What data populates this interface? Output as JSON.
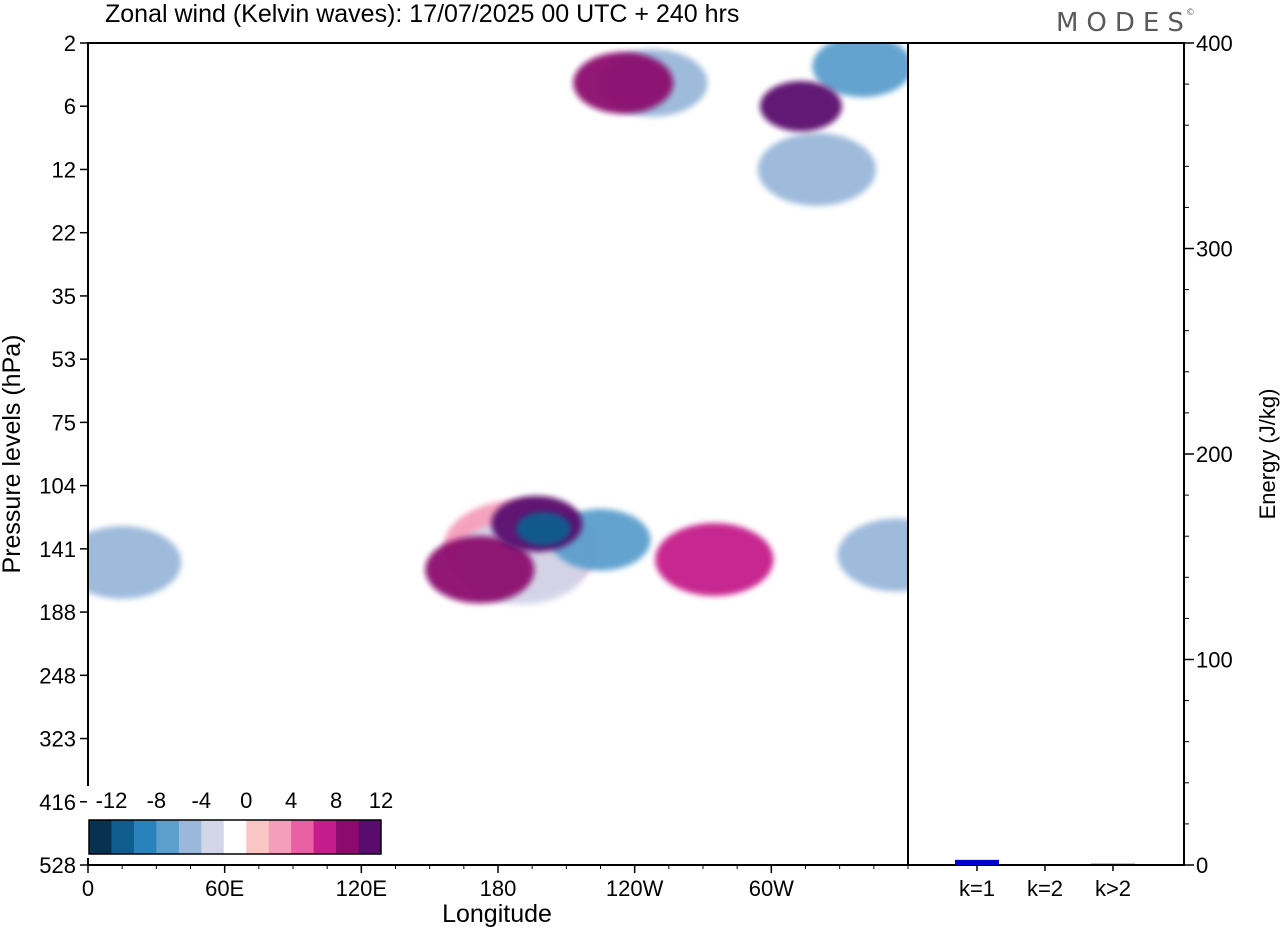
{
  "brand": "MODES",
  "chart_data": [
    {
      "type": "heatmap",
      "title": "Zonal wind (Kelvin waves):  17/07/2025  00 UTC  + 240 hrs",
      "xlabel": "Longitude",
      "ylabel": "Pressure levels (hPa)",
      "x_ticks": [
        "0",
        "60E",
        "120E",
        "180",
        "120W",
        "60W"
      ],
      "y_ticks": [
        "2",
        "6",
        "12",
        "22",
        "35",
        "53",
        "75",
        "104",
        "141",
        "188",
        "248",
        "323",
        "416",
        "528"
      ],
      "colorbar": {
        "labels": [
          "-12",
          "-8",
          "-4",
          "0",
          "4",
          "8",
          "12"
        ],
        "levels": [
          -14,
          -12,
          -10,
          -8,
          -6,
          -4,
          -2,
          2,
          4,
          6,
          8,
          10,
          12,
          14
        ],
        "colors": [
          "#08304f",
          "#0f5d8e",
          "#2a82bd",
          "#5c9fcd",
          "#9ab8da",
          "#d3d5e8",
          "#ffffff",
          "#f8c6c4",
          "#f59ebb",
          "#ea5fa3",
          "#c51c8b",
          "#8c0a6e",
          "#5a0c6e"
        ]
      },
      "features": [
        {
          "x": 200,
          "y": 128,
          "value": -14,
          "note": "core"
        },
        {
          "x": 225,
          "y": 135,
          "value": -9
        },
        {
          "x": 190,
          "y": 150,
          "value": -5
        },
        {
          "x": 240,
          "y": 250,
          "value": -3
        },
        {
          "x": 15,
          "y": 150,
          "value": -7
        },
        {
          "x": 355,
          "y": 145,
          "value": -7
        },
        {
          "x": 197,
          "y": 125,
          "value": 10
        },
        {
          "x": 172,
          "y": 155,
          "value": 8
        },
        {
          "x": 275,
          "y": 148,
          "value": 7
        },
        {
          "x": 190,
          "y": 140,
          "value": 3
        },
        {
          "x": 235,
          "y": 4,
          "value": 9
        },
        {
          "x": 313,
          "y": 6,
          "value": 11
        },
        {
          "x": 248,
          "y": 4,
          "value": -8
        },
        {
          "x": 340,
          "y": 3,
          "value": -9
        },
        {
          "x": 320,
          "y": 12,
          "value": -7
        }
      ]
    },
    {
      "type": "bar",
      "categories": [
        "k=1",
        "k=2",
        "k>2"
      ],
      "values": [
        2.5,
        0.3,
        0.6
      ],
      "ylabel": "Energy (J/kg)",
      "ylim": [
        0,
        400
      ],
      "y_ticks": [
        "0",
        "100",
        "200",
        "300",
        "400"
      ],
      "bar_colors": [
        "#0000cc",
        "#000000",
        "#000000"
      ]
    }
  ]
}
